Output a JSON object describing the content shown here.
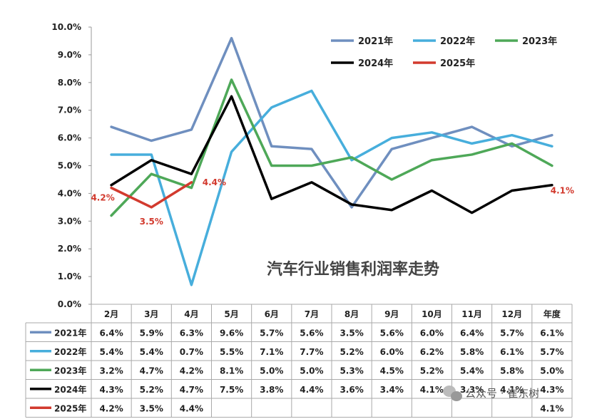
{
  "chart_data": {
    "type": "line",
    "title": "汽车行业销售利润率走势",
    "categories": [
      "2月",
      "3月",
      "4月",
      "5月",
      "6月",
      "7月",
      "8月",
      "9月",
      "10月",
      "11月",
      "12月",
      "年度"
    ],
    "yticks": [
      "0.0%",
      "1.0%",
      "2.0%",
      "3.0%",
      "4.0%",
      "5.0%",
      "6.0%",
      "7.0%",
      "8.0%",
      "9.0%",
      "10.0%"
    ],
    "ylim": [
      0,
      10
    ],
    "legend_position": "top-right",
    "grid": false,
    "series": [
      {
        "name": "2021年",
        "color": "#6f8fbf",
        "values": [
          6.4,
          5.9,
          6.3,
          9.6,
          5.7,
          5.6,
          3.5,
          5.6,
          6.0,
          6.4,
          5.7,
          6.1
        ],
        "labels": [
          "6.4%",
          "5.9%",
          "6.3%",
          "9.6%",
          "5.7%",
          "5.6%",
          "3.5%",
          "5.6%",
          "6.0%",
          "6.4%",
          "5.7%",
          "6.1%"
        ]
      },
      {
        "name": "2022年",
        "color": "#47aedc",
        "values": [
          5.4,
          5.4,
          0.7,
          5.5,
          7.1,
          7.7,
          5.2,
          6.0,
          6.2,
          5.8,
          6.1,
          5.7
        ],
        "labels": [
          "5.4%",
          "5.4%",
          "0.7%",
          "5.5%",
          "7.1%",
          "7.7%",
          "5.2%",
          "6.0%",
          "6.2%",
          "5.8%",
          "6.1%",
          "5.7%"
        ]
      },
      {
        "name": "2023年",
        "color": "#4ea858",
        "values": [
          3.2,
          4.7,
          4.2,
          8.1,
          5.0,
          5.0,
          5.3,
          4.5,
          5.2,
          5.4,
          5.8,
          5.0
        ],
        "labels": [
          "3.2%",
          "4.7%",
          "4.2%",
          "8.1%",
          "5.0%",
          "5.0%",
          "5.3%",
          "4.5%",
          "5.2%",
          "5.4%",
          "5.8%",
          "5.0%"
        ]
      },
      {
        "name": "2024年",
        "color": "#000000",
        "values": [
          4.3,
          5.2,
          4.7,
          7.5,
          3.8,
          4.4,
          3.6,
          3.4,
          4.1,
          3.3,
          4.1,
          4.3
        ],
        "labels": [
          "4.3%",
          "5.2%",
          "4.7%",
          "7.5%",
          "3.8%",
          "4.4%",
          "3.6%",
          "3.4%",
          "4.1%",
          "3.3%",
          "4.1%",
          "4.3%"
        ]
      },
      {
        "name": "2025年",
        "color": "#d23a2e",
        "values": [
          4.2,
          3.5,
          4.4,
          null,
          null,
          null,
          null,
          null,
          null,
          null,
          null,
          4.1
        ],
        "labels": [
          "4.2%",
          "3.5%",
          "4.4%",
          "",
          "",
          "",
          "",
          "",
          "",
          "",
          "",
          "4.1%"
        ],
        "annotations": [
          {
            "index": 0,
            "text": "4.2%"
          },
          {
            "index": 1,
            "text": "3.5%"
          },
          {
            "index": 2,
            "text": "4.4%"
          },
          {
            "index": 11,
            "text": "4.1%"
          }
        ]
      }
    ]
  },
  "watermark": {
    "icon": "wechat-icon",
    "text": "公众号 · 崔东树"
  }
}
